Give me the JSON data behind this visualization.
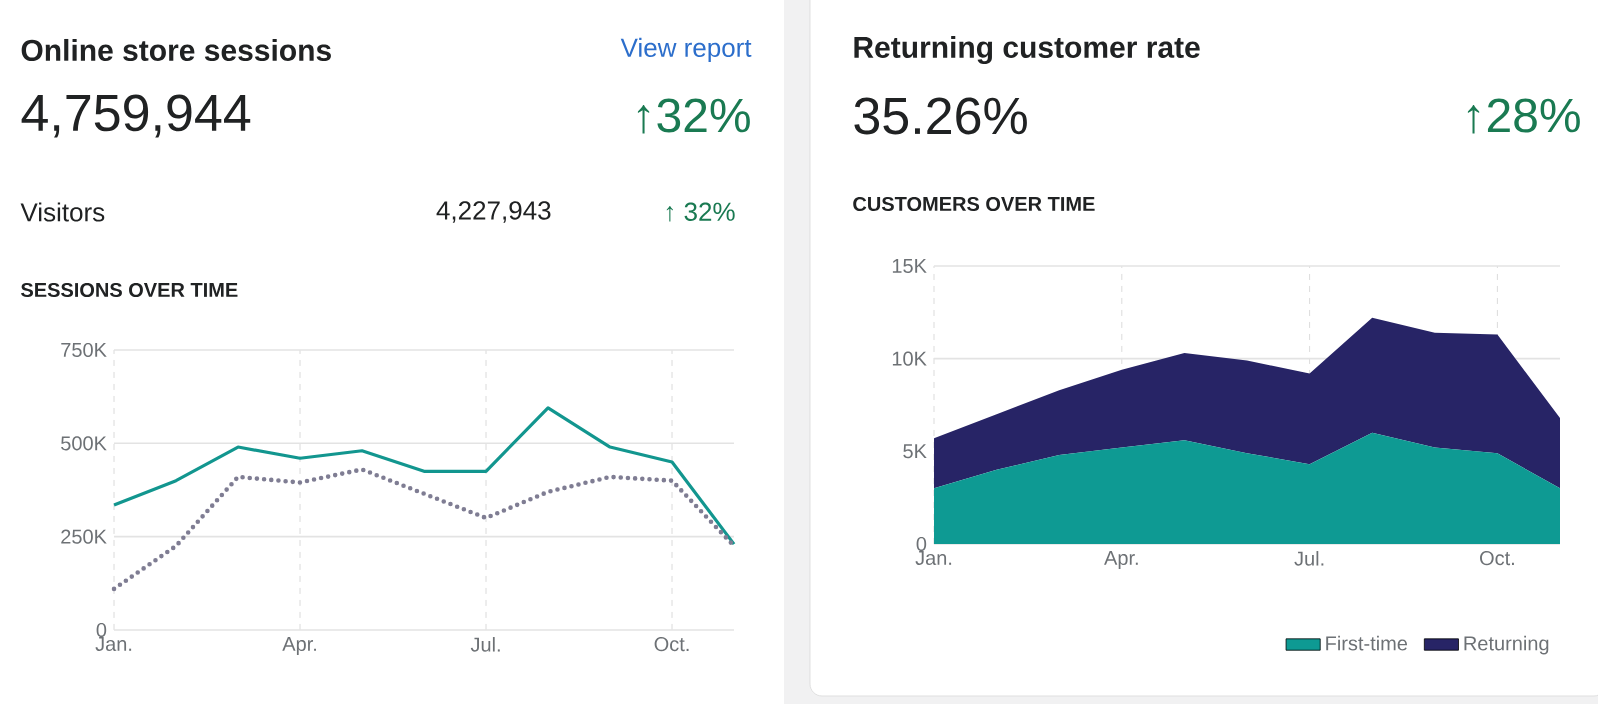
{
  "chart_data": [
    {
      "type": "line",
      "title": "Online store sessions",
      "subtitle": "4,759,944",
      "annotations": [
        "View report",
        "↑32%",
        "Visitors",
        "4,227,943",
        "↑ 32%",
        "SESSIONS OVER TIME"
      ],
      "categories": [
        "Jan.",
        null,
        null,
        "Apr.",
        null,
        null,
        "Jul.",
        null,
        null,
        "Oct.",
        null
      ],
      "series": [
        {
          "color": "#12968f",
          "line_style": "solid",
          "values": [
            335000,
            400000,
            490000,
            460000,
            480000,
            425000,
            425000,
            595000,
            490000,
            450000,
            230000
          ]
        },
        {
          "color": "#7f7d93",
          "line_style": "dotted",
          "values": [
            110000,
            225000,
            410000,
            395000,
            430000,
            365000,
            300000,
            370000,
            410000,
            400000,
            225000
          ]
        }
      ],
      "ylim": [
        0,
        750000
      ],
      "yticks": [
        0,
        {
          "value": 250000,
          "label": "250K"
        },
        {
          "value": 500000,
          "label": "500K"
        },
        {
          "value": 750000,
          "label": "750K"
        }
      ],
      "grid": true,
      "marker": "none"
    },
    {
      "type": "area",
      "title": "Returning customer rate",
      "subtitle": "35.26%",
      "annotations": [
        "↑28%",
        "CUSTOMERS OVER TIME"
      ],
      "categories": [
        "Jan.",
        null,
        null,
        "Apr.",
        null,
        null,
        "Jul.",
        null,
        null,
        "Oct.",
        null
      ],
      "stacked": true,
      "series": [
        {
          "name": "First-time",
          "color": "#0e9a93",
          "values": [
            3000,
            4000,
            4800,
            5200,
            5600,
            4900,
            4300,
            6000,
            5200,
            4900,
            3000
          ]
        },
        {
          "name": "Returning",
          "color": "#272466",
          "values": [
            2700,
            3000,
            3500,
            4200,
            4700,
            5000,
            4900,
            6200,
            6200,
            6400,
            3800
          ]
        }
      ],
      "ylim": [
        0,
        15000
      ],
      "yticks": [
        0,
        {
          "value": 5000,
          "label": "5K"
        },
        {
          "value": 10000,
          "label": "10K"
        },
        {
          "value": 15000,
          "label": "15K"
        }
      ],
      "grid": true,
      "legend": "bottom right"
    }
  ]
}
